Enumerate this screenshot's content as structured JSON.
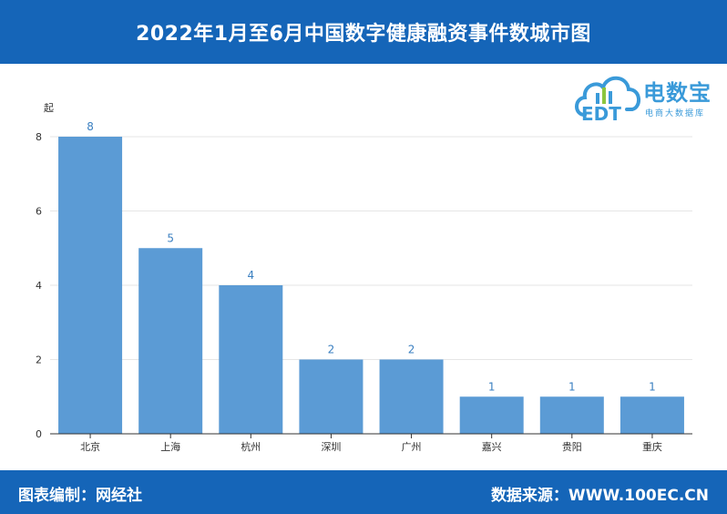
{
  "header": {
    "title": "2022年1月至6月中国数字健康融资事件数城市图"
  },
  "footer": {
    "left": "图表编制：网经社",
    "right": "数据来源：WWW.100EC.CN"
  },
  "logo": {
    "name": "电数宝",
    "subtitle": "电商大数据库",
    "mark": "EDT"
  },
  "colors": {
    "brand": "#1565b8",
    "bar": "#5b9bd5",
    "label": "#3a7fc0",
    "logo": "#3a9ad9"
  },
  "chart_data": {
    "type": "bar",
    "ylabel": "起",
    "xlabel": "",
    "title": "",
    "categories": [
      "北京",
      "上海",
      "杭州",
      "深圳",
      "广州",
      "嘉兴",
      "贵阳",
      "重庆"
    ],
    "values": [
      8,
      5,
      4,
      2,
      2,
      1,
      1,
      1
    ],
    "ylim": [
      0,
      8
    ],
    "yticks": [
      0,
      2,
      4,
      6,
      8
    ],
    "grid": true,
    "data_labels": true
  }
}
